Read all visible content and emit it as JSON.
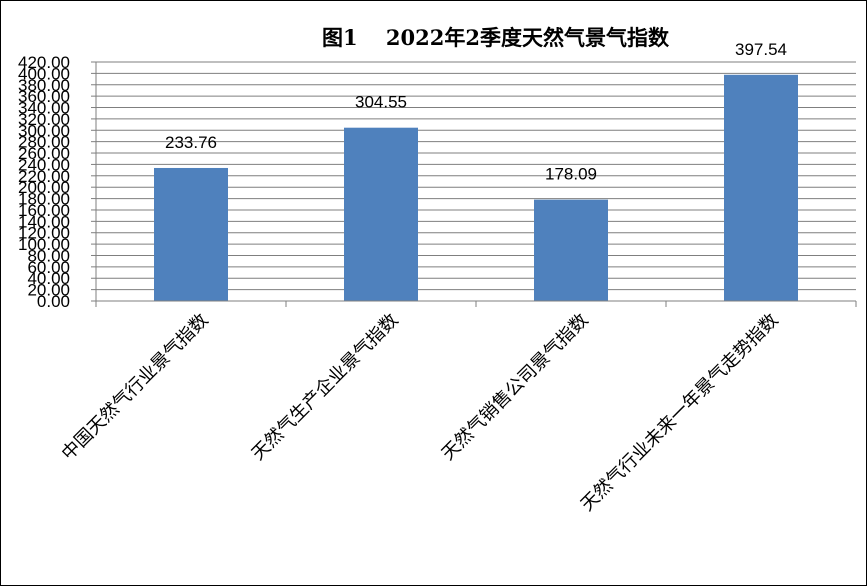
{
  "chart_data": {
    "type": "bar",
    "title": "图1　 2022年2季度天然气景气指数",
    "categories": [
      "中国天然气行业景气指数",
      "天然气生产企业景气指数",
      "天然气销售公司景气指数",
      "天然气行业未来一年景气走势指数"
    ],
    "values": [
      233.76,
      304.55,
      178.09,
      397.54
    ],
    "data_labels": [
      "233.76",
      "304.55",
      "178.09",
      "397.54"
    ],
    "ylim": [
      0,
      420
    ],
    "ytick_step": 20,
    "ytick_format_decimals": 2,
    "grid": true,
    "legend": "none",
    "xlabel": "",
    "ylabel": "",
    "colors": {
      "bar": "#4f81bd",
      "grid": "#7f7f7f",
      "axis": "#7f7f7f"
    }
  }
}
